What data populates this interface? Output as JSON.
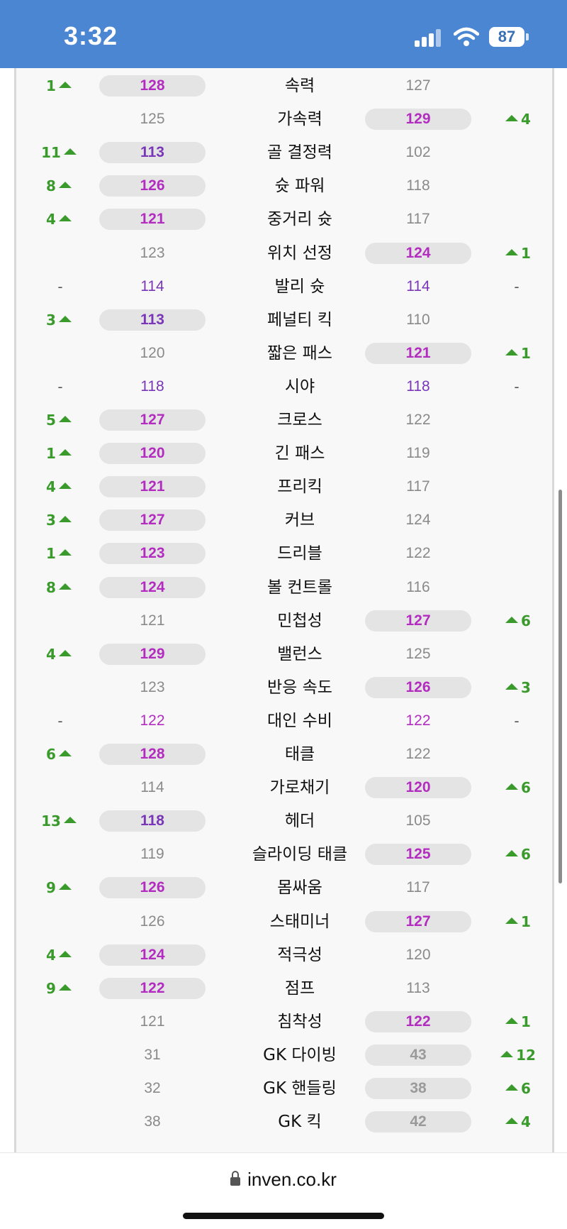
{
  "status_bar": {
    "time": "3:32",
    "battery": "87"
  },
  "browser": {
    "url": "inven.co.kr"
  },
  "rows": [
    {
      "stat": "속력",
      "left": "128",
      "right": "127",
      "winner": "left",
      "diff": "1",
      "color": "magenta"
    },
    {
      "stat": "가속력",
      "left": "125",
      "right": "129",
      "winner": "right",
      "diff": "4",
      "color": "magenta"
    },
    {
      "stat": "골 결정력",
      "left": "113",
      "right": "102",
      "winner": "left",
      "diff": "11",
      "color": "purple"
    },
    {
      "stat": "슛 파워",
      "left": "126",
      "right": "118",
      "winner": "left",
      "diff": "8",
      "color": "magenta"
    },
    {
      "stat": "중거리 슛",
      "left": "121",
      "right": "117",
      "winner": "left",
      "diff": "4",
      "color": "magenta"
    },
    {
      "stat": "위치 선정",
      "left": "123",
      "right": "124",
      "winner": "right",
      "diff": "1",
      "color": "magenta"
    },
    {
      "stat": "발리 슛",
      "left": "114",
      "right": "114",
      "winner": "tie",
      "diff": "-",
      "color": "purple"
    },
    {
      "stat": "페널티 킥",
      "left": "113",
      "right": "110",
      "winner": "left",
      "diff": "3",
      "color": "purple"
    },
    {
      "stat": "짧은 패스",
      "left": "120",
      "right": "121",
      "winner": "right",
      "diff": "1",
      "color": "magenta"
    },
    {
      "stat": "시야",
      "left": "118",
      "right": "118",
      "winner": "tie",
      "diff": "-",
      "color": "purple"
    },
    {
      "stat": "크로스",
      "left": "127",
      "right": "122",
      "winner": "left",
      "diff": "5",
      "color": "magenta"
    },
    {
      "stat": "긴 패스",
      "left": "120",
      "right": "119",
      "winner": "left",
      "diff": "1",
      "color": "magenta"
    },
    {
      "stat": "프리킥",
      "left": "121",
      "right": "117",
      "winner": "left",
      "diff": "4",
      "color": "magenta"
    },
    {
      "stat": "커브",
      "left": "127",
      "right": "124",
      "winner": "left",
      "diff": "3",
      "color": "magenta"
    },
    {
      "stat": "드리블",
      "left": "123",
      "right": "122",
      "winner": "left",
      "diff": "1",
      "color": "magenta"
    },
    {
      "stat": "볼 컨트롤",
      "left": "124",
      "right": "116",
      "winner": "left",
      "diff": "8",
      "color": "magenta"
    },
    {
      "stat": "민첩성",
      "left": "121",
      "right": "127",
      "winner": "right",
      "diff": "6",
      "color": "magenta"
    },
    {
      "stat": "밸런스",
      "left": "129",
      "right": "125",
      "winner": "left",
      "diff": "4",
      "color": "magenta"
    },
    {
      "stat": "반응 속도",
      "left": "123",
      "right": "126",
      "winner": "right",
      "diff": "3",
      "color": "magenta"
    },
    {
      "stat": "대인 수비",
      "left": "122",
      "right": "122",
      "winner": "tie",
      "diff": "-",
      "color": "magenta"
    },
    {
      "stat": "태클",
      "left": "128",
      "right": "122",
      "winner": "left",
      "diff": "6",
      "color": "magenta"
    },
    {
      "stat": "가로채기",
      "left": "114",
      "right": "120",
      "winner": "right",
      "diff": "6",
      "color": "magenta"
    },
    {
      "stat": "헤더",
      "left": "118",
      "right": "105",
      "winner": "left",
      "diff": "13",
      "color": "purple"
    },
    {
      "stat": "슬라이딩 태클",
      "left": "119",
      "right": "125",
      "winner": "right",
      "diff": "6",
      "color": "magenta"
    },
    {
      "stat": "몸싸움",
      "left": "126",
      "right": "117",
      "winner": "left",
      "diff": "9",
      "color": "magenta"
    },
    {
      "stat": "스태미너",
      "left": "126",
      "right": "127",
      "winner": "right",
      "diff": "1",
      "color": "magenta"
    },
    {
      "stat": "적극성",
      "left": "124",
      "right": "120",
      "winner": "left",
      "diff": "4",
      "color": "magenta"
    },
    {
      "stat": "점프",
      "left": "122",
      "right": "113",
      "winner": "left",
      "diff": "9",
      "color": "magenta"
    },
    {
      "stat": "침착성",
      "left": "121",
      "right": "122",
      "winner": "right",
      "diff": "1",
      "color": "magenta"
    },
    {
      "stat": "GK 다이빙",
      "left": "31",
      "right": "43",
      "winner": "right",
      "diff": "12",
      "color": "grey"
    },
    {
      "stat": "GK 핸들링",
      "left": "32",
      "right": "38",
      "winner": "right",
      "diff": "6",
      "color": "grey"
    },
    {
      "stat": "GK 킥",
      "left": "38",
      "right": "42",
      "winner": "right",
      "diff": "4",
      "color": "grey"
    }
  ]
}
